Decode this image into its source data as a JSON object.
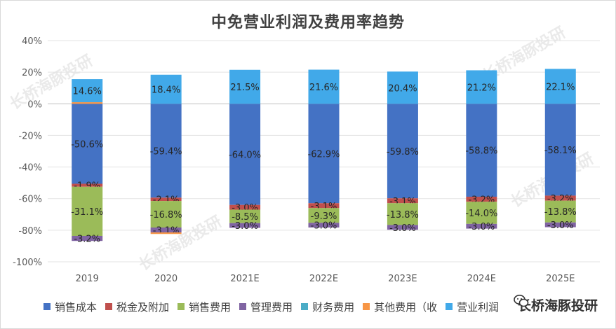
{
  "chart_data": {
    "type": "bar",
    "stacked": true,
    "title": "中免营业利润及费用率趋势",
    "categories": [
      "2019",
      "2020",
      "2021E",
      "2022E",
      "2023E",
      "2024E",
      "2025E"
    ],
    "ylim": [
      -100,
      40
    ],
    "yticks": [
      "40%",
      "20%",
      "0%",
      "-20%",
      "-40%",
      "-60%",
      "-80%",
      "-100%"
    ],
    "grid": true,
    "legend_position": "bottom",
    "series": [
      {
        "name": "销售成本",
        "color": "#4472C4",
        "values": [
          -50.6,
          -59.4,
          -64.0,
          -62.9,
          -59.8,
          -58.8,
          -58.1
        ],
        "labels": [
          "-50.6%",
          "-59.4%",
          "-64.0%",
          "-62.9%",
          "-59.8%",
          "-58.8%",
          "-58.1%"
        ]
      },
      {
        "name": "税金及附加",
        "color": "#C0504D",
        "values": [
          -1.9,
          -2.1,
          -3.0,
          -3.1,
          -3.1,
          -3.2,
          -3.2
        ],
        "labels": [
          "-1.9%",
          "-2.1%",
          "-3.0%",
          "-3.1%",
          "-3.1%",
          "-3.2%",
          "-3.2%"
        ]
      },
      {
        "name": "销售费用",
        "color": "#9BBB59",
        "values": [
          -31.1,
          -16.8,
          -8.5,
          -9.3,
          -13.8,
          -14.0,
          -13.8
        ],
        "labels": [
          "-31.1%",
          "-16.8%",
          "-8.5%",
          "-9.3%",
          "-13.8%",
          "-14.0%",
          "-13.8%"
        ]
      },
      {
        "name": "管理费用",
        "color": "#8064A2",
        "values": [
          -3.2,
          -3.1,
          -3.0,
          -3.0,
          -3.0,
          -3.0,
          -3.0
        ],
        "labels": [
          "-3.2%",
          "-3.1%",
          "-3.0%",
          "-3.0%",
          "-3.0%",
          "-3.0%",
          "-3.0%"
        ]
      },
      {
        "name": "财务费用",
        "color": "#4BACC6",
        "values": [
          0,
          0,
          0,
          0,
          0,
          0,
          0
        ],
        "labels": []
      },
      {
        "name": "其他费用（收益）",
        "color": "#F79646",
        "values": [
          1.0,
          -1.0,
          0,
          0,
          0,
          0,
          0
        ],
        "labels": []
      },
      {
        "name": "营业利润",
        "color": "#41A9E9",
        "values": [
          14.6,
          18.4,
          21.5,
          21.6,
          20.4,
          21.2,
          22.1
        ],
        "labels": [
          "14.6%",
          "18.4%",
          "21.5%",
          "21.6%",
          "20.4%",
          "21.2%",
          "22.1%"
        ]
      }
    ],
    "legend_display": [
      "销售成本",
      "税金及附加",
      "销售费用",
      "管理费用",
      "财务费用",
      "其他费用（收",
      "营业利润"
    ]
  },
  "brand": {
    "label": "长桥海豚投研",
    "icon": "wechat-icon"
  },
  "watermark": "长桥海豚投研"
}
